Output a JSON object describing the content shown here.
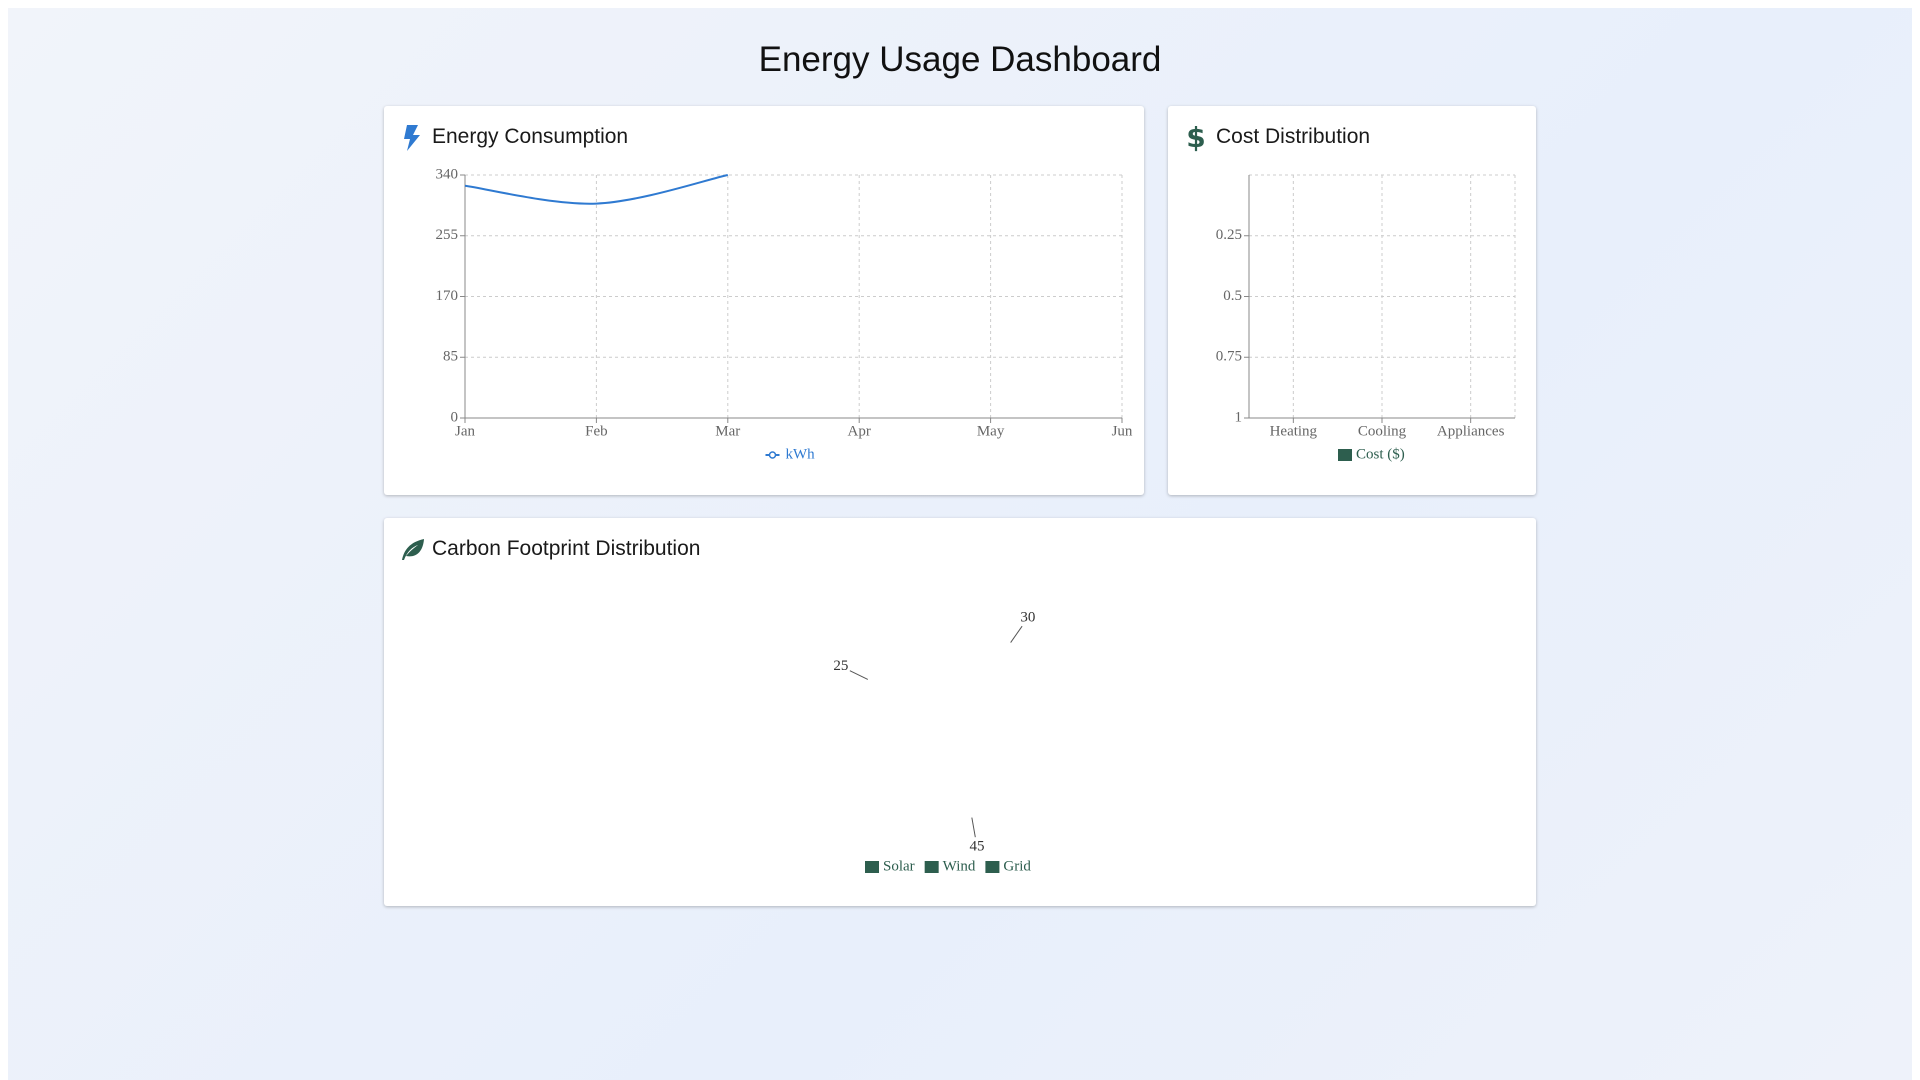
{
  "title": "Energy Usage Dashboard",
  "chart_data": [
    {
      "type": "line",
      "title": "Energy Consumption",
      "categories": [
        "Jan",
        "Feb",
        "Mar",
        "Apr",
        "May",
        "Jun"
      ],
      "series": [
        {
          "name": "kWh",
          "color": "#2f7ad1",
          "values": [
            325,
            300,
            340,
            null,
            null,
            null
          ]
        }
      ],
      "ylim": [
        0,
        340
      ],
      "yticks": [
        0,
        85,
        170,
        255,
        340
      ],
      "grid": true
    },
    {
      "type": "bar",
      "title": "Cost Distribution",
      "categories": [
        "Heating",
        "Cooling",
        "Appliances"
      ],
      "series": [
        {
          "name": "Cost ($)",
          "color": "#2d5e4e",
          "values": [
            null,
            null,
            null
          ]
        }
      ],
      "ylim": [
        0,
        1
      ],
      "yticks": [
        0.25,
        0.5,
        0.75,
        1
      ],
      "y_inverted": true,
      "grid": true
    },
    {
      "type": "pie",
      "title": "Carbon Footprint Distribution",
      "categories": [
        "Solar",
        "Wind",
        "Grid"
      ],
      "values": [
        25,
        30,
        45
      ],
      "color": "#2d5e4e"
    }
  ]
}
